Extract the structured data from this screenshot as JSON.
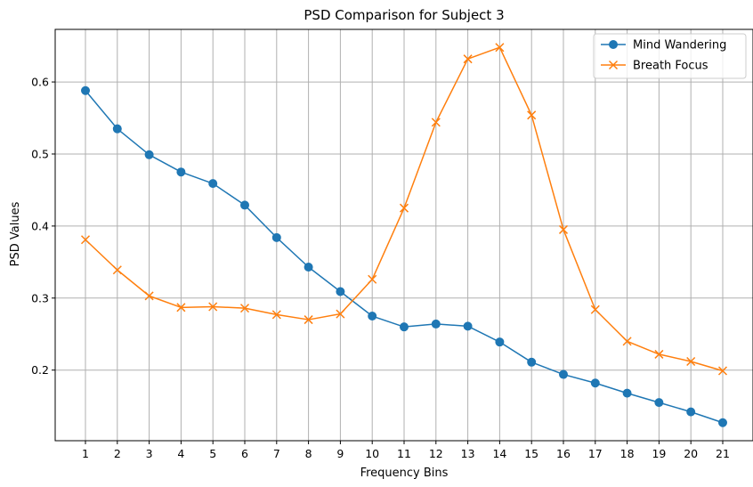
{
  "chart_data": {
    "type": "line",
    "title": "PSD Comparison for Subject 3",
    "xlabel": "Frequency Bins",
    "ylabel": "PSD Values",
    "x": [
      1,
      2,
      3,
      4,
      5,
      6,
      7,
      8,
      9,
      10,
      11,
      12,
      13,
      14,
      15,
      16,
      17,
      18,
      19,
      20,
      21
    ],
    "x_tick_labels": [
      "1",
      "2",
      "3",
      "4",
      "5",
      "6",
      "7",
      "8",
      "9",
      "10",
      "11",
      "12",
      "13",
      "14",
      "15",
      "16",
      "17",
      "18",
      "19",
      "20",
      "21"
    ],
    "y_ticks": [
      0.2,
      0.3,
      0.4,
      0.5,
      0.6
    ],
    "y_tick_labels": [
      "0.2",
      "0.3",
      "0.4",
      "0.5",
      "0.6"
    ],
    "xlim": [
      0.05,
      21.95
    ],
    "ylim": [
      0.102,
      0.673
    ],
    "grid": true,
    "legend_position": "top-right",
    "series": [
      {
        "name": "Mind Wandering",
        "color": "#1f77b4",
        "marker": "circle",
        "values": [
          0.588,
          0.535,
          0.499,
          0.475,
          0.459,
          0.429,
          0.384,
          0.343,
          0.309,
          0.275,
          0.26,
          0.264,
          0.261,
          0.239,
          0.211,
          0.194,
          0.182,
          0.168,
          0.155,
          0.142,
          0.127
        ]
      },
      {
        "name": "Breath Focus",
        "color": "#ff7f0e",
        "marker": "x",
        "values": [
          0.381,
          0.339,
          0.303,
          0.287,
          0.288,
          0.286,
          0.277,
          0.27,
          0.278,
          0.326,
          0.425,
          0.544,
          0.632,
          0.648,
          0.554,
          0.395,
          0.284,
          0.24,
          0.222,
          0.212,
          0.199
        ]
      }
    ]
  }
}
